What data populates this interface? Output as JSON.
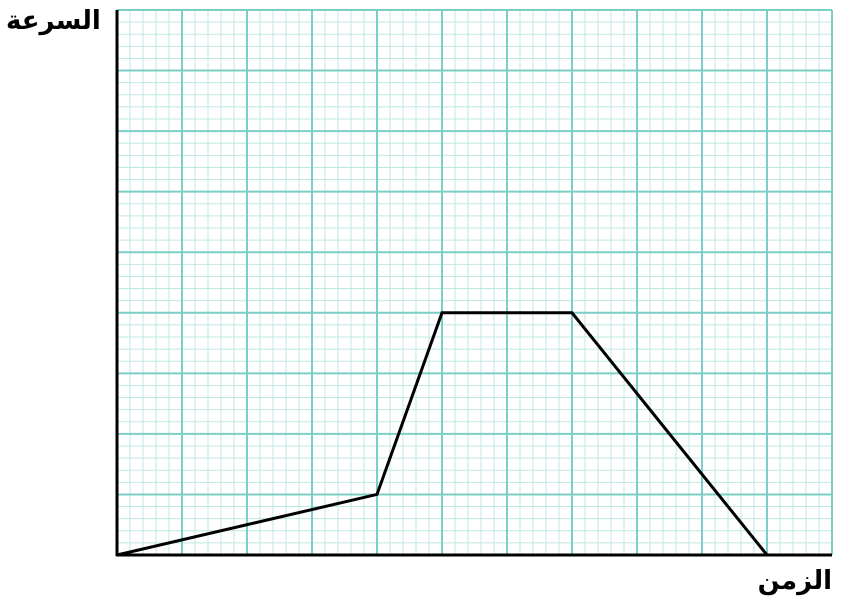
{
  "chart_data": {
    "type": "line",
    "title": "",
    "xlabel": "الزمن",
    "ylabel": "السرعة",
    "xlim": [
      0,
      11
    ],
    "ylim": [
      0,
      9
    ],
    "grid": true,
    "minor_grid_per_major": 5,
    "grid_color_major": "#7ccfc7",
    "grid_color_minor": "#bfe7e2",
    "line_color": "#000000",
    "series": [
      {
        "x": [
          0,
          4,
          5,
          7,
          10
        ],
        "y": [
          0,
          1,
          4,
          4,
          0
        ]
      }
    ]
  }
}
